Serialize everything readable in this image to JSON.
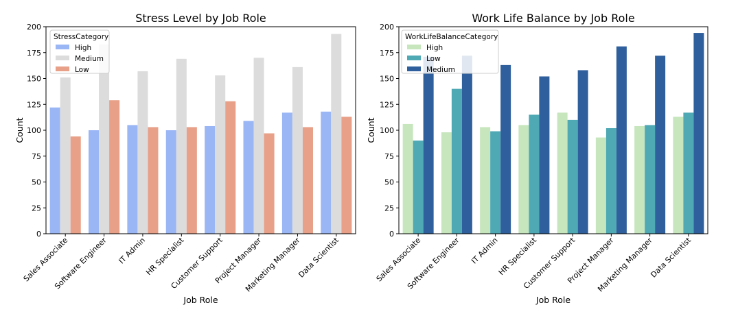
{
  "chart_data": [
    {
      "type": "bar",
      "title": "Stress Level by Job Role",
      "xlabel": "Job Role",
      "ylabel": "Count",
      "ylim": [
        0,
        200
      ],
      "yticks": [
        0,
        25,
        50,
        75,
        100,
        125,
        150,
        175,
        200
      ],
      "categories": [
        "Sales Associate",
        "Software Engineer",
        "IT Admin",
        "HR Specialist",
        "Customer Support",
        "Project Manager",
        "Marketing Manager",
        "Data Scientist"
      ],
      "legend": {
        "title": "StressCategory",
        "position": "top-left"
      },
      "grid": false,
      "series": [
        {
          "name": "High",
          "color": "#9bb6f5",
          "values": [
            122,
            100,
            105,
            100,
            104,
            109,
            117,
            118
          ]
        },
        {
          "name": "Medium",
          "color": "#dcdcdc",
          "values": [
            151,
            183,
            157,
            169,
            153,
            170,
            161,
            193
          ]
        },
        {
          "name": "Low",
          "color": "#e8a088",
          "values": [
            94,
            129,
            103,
            103,
            128,
            97,
            103,
            113
          ]
        }
      ]
    },
    {
      "type": "bar",
      "title": "Work Life Balance by Job Role",
      "xlabel": "Job Role",
      "ylabel": "Count",
      "ylim": [
        0,
        200
      ],
      "yticks": [
        0,
        25,
        50,
        75,
        100,
        125,
        150,
        175,
        200
      ],
      "categories": [
        "Sales Associate",
        "Software Engineer",
        "IT Admin",
        "HR Specialist",
        "Customer Support",
        "Project Manager",
        "Marketing Manager",
        "Data Scientist"
      ],
      "legend": {
        "title": "WorkLifeBalanceCategory",
        "position": "top-left"
      },
      "grid": false,
      "series": [
        {
          "name": "High",
          "color": "#c7e6bd",
          "values": [
            106,
            98,
            103,
            105,
            117,
            93,
            104,
            113
          ]
        },
        {
          "name": "Low",
          "color": "#4fa9b5",
          "values": [
            90,
            140,
            99,
            115,
            110,
            102,
            105,
            117
          ]
        },
        {
          "name": "Medium",
          "color": "#2f5f9c",
          "values": [
            171,
            172,
            163,
            152,
            158,
            181,
            172,
            194
          ]
        }
      ]
    }
  ]
}
